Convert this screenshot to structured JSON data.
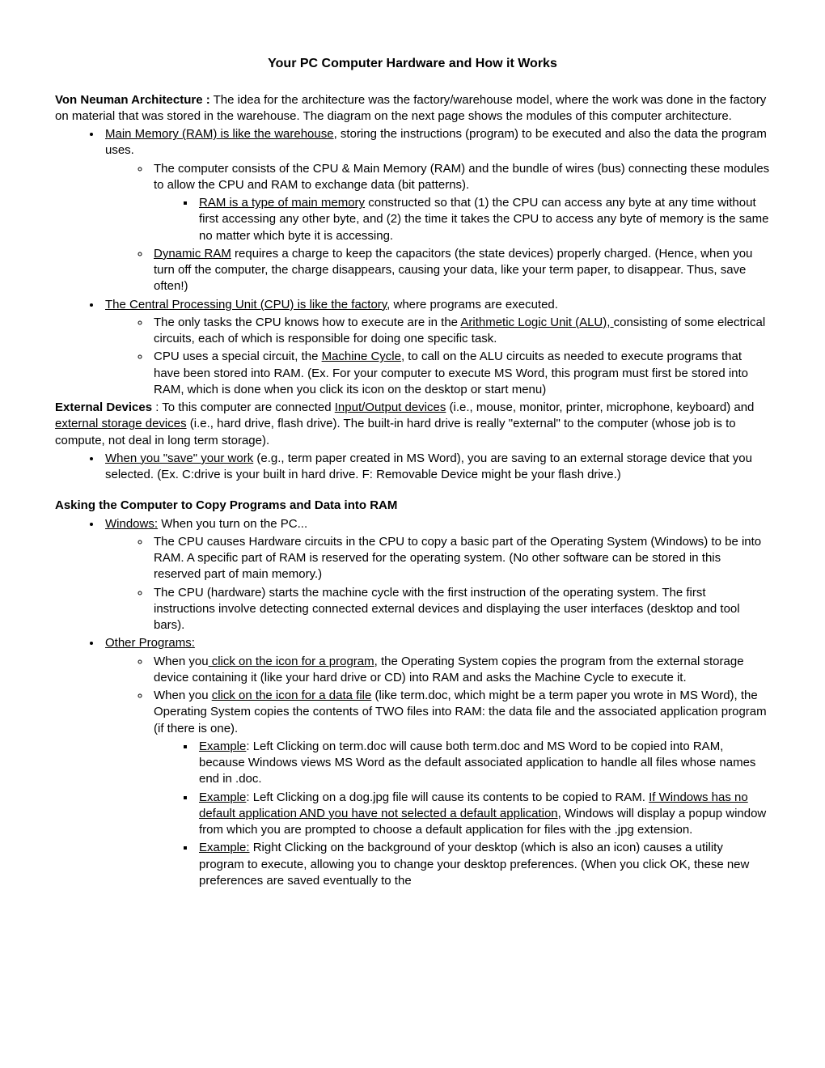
{
  "title": "Your PC  Computer Hardware and How it Works",
  "p1_lead": "Von Neuman Architecture :",
  "p1_body": "   The idea for the architecture was the factory/warehouse model, where the work was done in the factory on material that was stored in the warehouse. The diagram on the next page shows the modules of this computer architecture.",
  "b1_u": " Main Memory (RAM) is like the warehouse",
  "b1_r": ", storing the instructions (program) to be executed and also the data the program uses.",
  "b1a": "The computer consists of the CPU & Main Memory (RAM)  and the bundle of wires (bus) connecting these modules  to allow the CPU and RAM to exchange data (bit patterns).",
  "b1a1_u": "RAM is a type of main memory",
  "b1a1_r": " constructed so that (1) the CPU can access any byte at any time without first accessing any other byte, and (2) the time it takes the CPU to access any byte of memory is the same no matter which byte it is accessing.",
  "b1b_u": "Dynamic RAM",
  "b1b_r": " requires a charge to keep the capacitors (the state devices) properly charged. (Hence, when you turn off the computer, the charge disappears, causing your data, like your term paper, to disappear.  Thus, save often!)",
  "b2_u": "The Central Processing Unit (CPU) is like the factory",
  "b2_r": ", where programs are executed.",
  "b2a_1": "The only tasks the CPU knows how to execute are in the ",
  "b2a_u": "Arithmetic Logic Unit (ALU), ",
  "b2a_2": "consisting of some electrical circuits, each of which is responsible for doing one specific task.",
  "b2b_1": "CPU uses a special circuit, the ",
  "b2b_u": "Machine Cycle",
  "b2b_2": ", to call on the ALU circuits as needed to execute programs that have been stored into RAM. (Ex. For your computer to execute MS Word, this program must first be stored into RAM, which is done when you click its icon on the desktop or start menu)",
  "p2_lead": "External Devices",
  "p2_1": " : To this computer are connected ",
  "p2_u1": "Input/Output devices",
  "p2_2": " (i.e., mouse, monitor, printer, microphone, keyboard) and ",
  "p2_u2": "external storage devices",
  "p2_3": " (i.e., hard drive, flash drive).  The built-in hard drive is really \"external\" to the computer (whose job is to compute, not deal in long term storage).",
  "b3_u": "When you \"save\" your work",
  "b3_r": " (e.g., term paper created in MS Word), you are saving to an external storage device that you selected. (Ex. C:drive is your built in hard drive.  F: Removable Device might be your flash drive.)",
  "h2": "Asking the Computer to Copy  Programs and Data into RAM",
  "b4_u": "Windows:",
  "b4_r": " When you turn on the PC...",
  "b4a": "The CPU causes Hardware circuits in the CPU to copy a basic part of the Operating System (Windows) to be into RAM.  A specific part of RAM is reserved for the operating system. (No other software can be stored in this reserved part of main memory.)",
  "b4b": "The CPU (hardware) starts the machine cycle with the first instruction of the operating system. The first instructions involve detecting connected external devices and displaying the user interfaces (desktop and tool bars).",
  "b5_u": "Other Programs:",
  "b5a_1": "When you",
  "b5a_u": " click on the icon for a program",
  "b5a_2": ", the Operating System copies the program from the external storage device containing it (like your hard drive or CD) into RAM and asks the Machine Cycle to execute it.",
  "b5b_1": "When you ",
  "b5b_u": "click on the icon for a data file",
  "b5b_2": " (like term.doc, which might be a term paper you wrote in MS Word), the Operating System copies the contents of TWO files into RAM: the data file and the associated application program (if there is one).",
  "ex1_u": "Example",
  "ex1_r": ": Left Clicking on term.doc will cause both term.doc and MS Word to be copied into RAM, because Windows views MS Word as the default associated application to handle all files whose names end in .doc.",
  "ex2_u": "Example",
  "ex2_1": ": Left Clicking on a dog.jpg file will cause its contents to be copied to RAM.  ",
  "ex2_u2": "If Windows has no default application AND you have not selected a default application",
  "ex2_2": ", Windows will display a popup window from which you are prompted to choose a default application for files with the .jpg extension.",
  "ex3_u": "Example:",
  "ex3_r": " Right Clicking on the background of your desktop (which is also an icon) causes a utility program to execute, allowing you to change your desktop preferences.  (When you click OK, these new preferences are saved eventually to the"
}
